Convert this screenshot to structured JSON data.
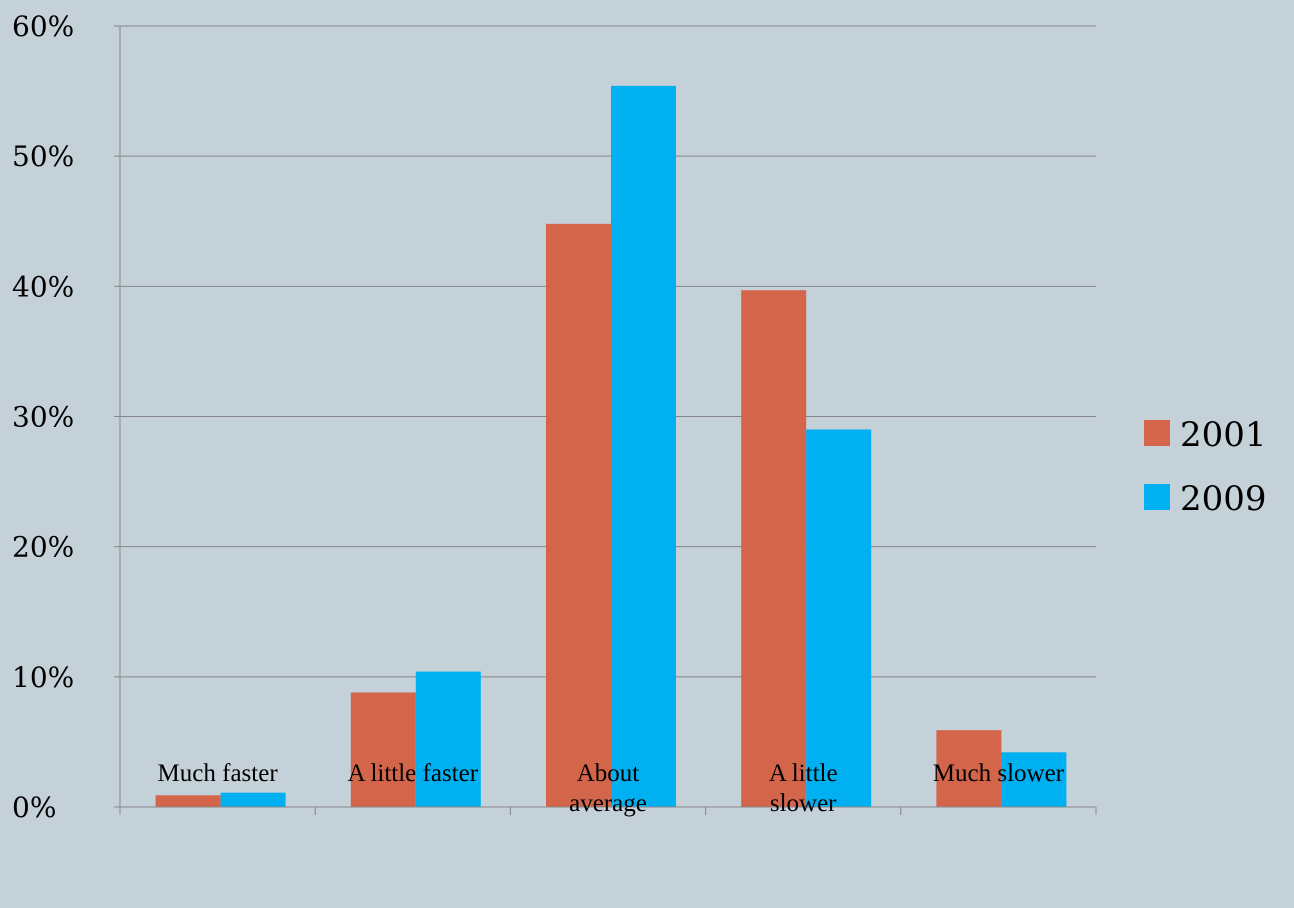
{
  "chart_data": {
    "type": "bar",
    "title": "",
    "xlabel": "",
    "ylabel": "",
    "categories": [
      [
        "Much faster"
      ],
      [
        "A little faster"
      ],
      [
        "About",
        "average"
      ],
      [
        "A little",
        "slower"
      ],
      [
        "Much slower"
      ]
    ],
    "series": [
      {
        "name": "2001",
        "color": "#d2654a",
        "values": [
          0.9,
          8.8,
          44.8,
          39.7,
          5.9
        ]
      },
      {
        "name": "2009",
        "color": "#00b0f0",
        "values": [
          1.1,
          10.4,
          55.4,
          29.0,
          4.2
        ]
      }
    ],
    "ylim": [
      0,
      60
    ],
    "yticks": [
      0,
      10,
      20,
      30,
      40,
      50,
      60
    ],
    "ytick_labels": [
      "0%",
      "10%",
      "20%",
      "30%",
      "40%",
      "50%",
      "60%"
    ],
    "grid": true,
    "legend": "right"
  }
}
